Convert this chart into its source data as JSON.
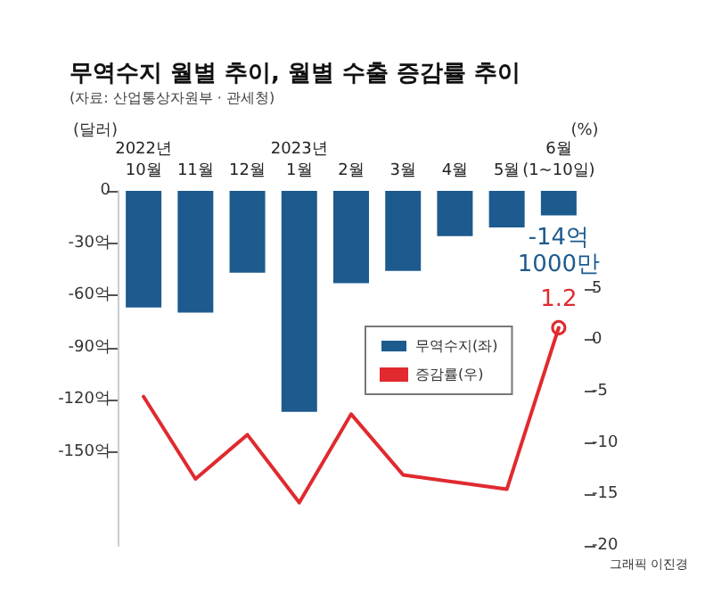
{
  "chart_data": {
    "type": "bar",
    "title": "무역수지 월별 추이, 월별 수출 증감률 추이",
    "annotations": [
      "(자료: 산업통상자원부 · 관세청)",
      "그래픽 이진경"
    ],
    "categories": [
      "2022년\n10월",
      "11월",
      "12월",
      "2023년\n1월",
      "2월",
      "3월",
      "4월",
      "5월",
      "6월\n(1~10일)"
    ],
    "ylabel": "(달러)",
    "y2label": "(%)",
    "series": [
      {
        "name": "무역수지(좌)",
        "color": "#1d5a8e",
        "values": [
          -67,
          -70,
          -47,
          -127,
          -53,
          -46,
          -26,
          -21,
          -14.1
        ],
        "value_labels": [
          null,
          null,
          null,
          null,
          null,
          null,
          null,
          null,
          "-14억\n1000만"
        ]
      },
      {
        "name": "증감률(우)",
        "type": "line",
        "axis": "y2",
        "color": "#e02a2f",
        "values": [
          -5.5,
          -13.5,
          -9.2,
          -15.8,
          -7.2,
          -13.1,
          -13.8,
          -14.5,
          1.2
        ],
        "value_labels": [
          null,
          null,
          null,
          null,
          null,
          null,
          null,
          null,
          "1.2"
        ]
      }
    ],
    "ylim": [
      -204,
      0
    ],
    "yticks": [
      {
        "value": 0,
        "label": "0"
      },
      {
        "value": -30,
        "label": "-30억"
      },
      {
        "value": -60,
        "label": "-60억"
      },
      {
        "value": -90,
        "label": "-90억"
      },
      {
        "value": -120,
        "label": "-120억"
      },
      {
        "value": -150,
        "label": "-150억"
      }
    ],
    "y2lim": [
      -20,
      14.5
    ],
    "y2ticks": [
      5,
      0,
      -5,
      -10,
      -15,
      -20
    ],
    "legend": "right",
    "grid": false,
    "marker": "none",
    "line_style": "solid"
  }
}
